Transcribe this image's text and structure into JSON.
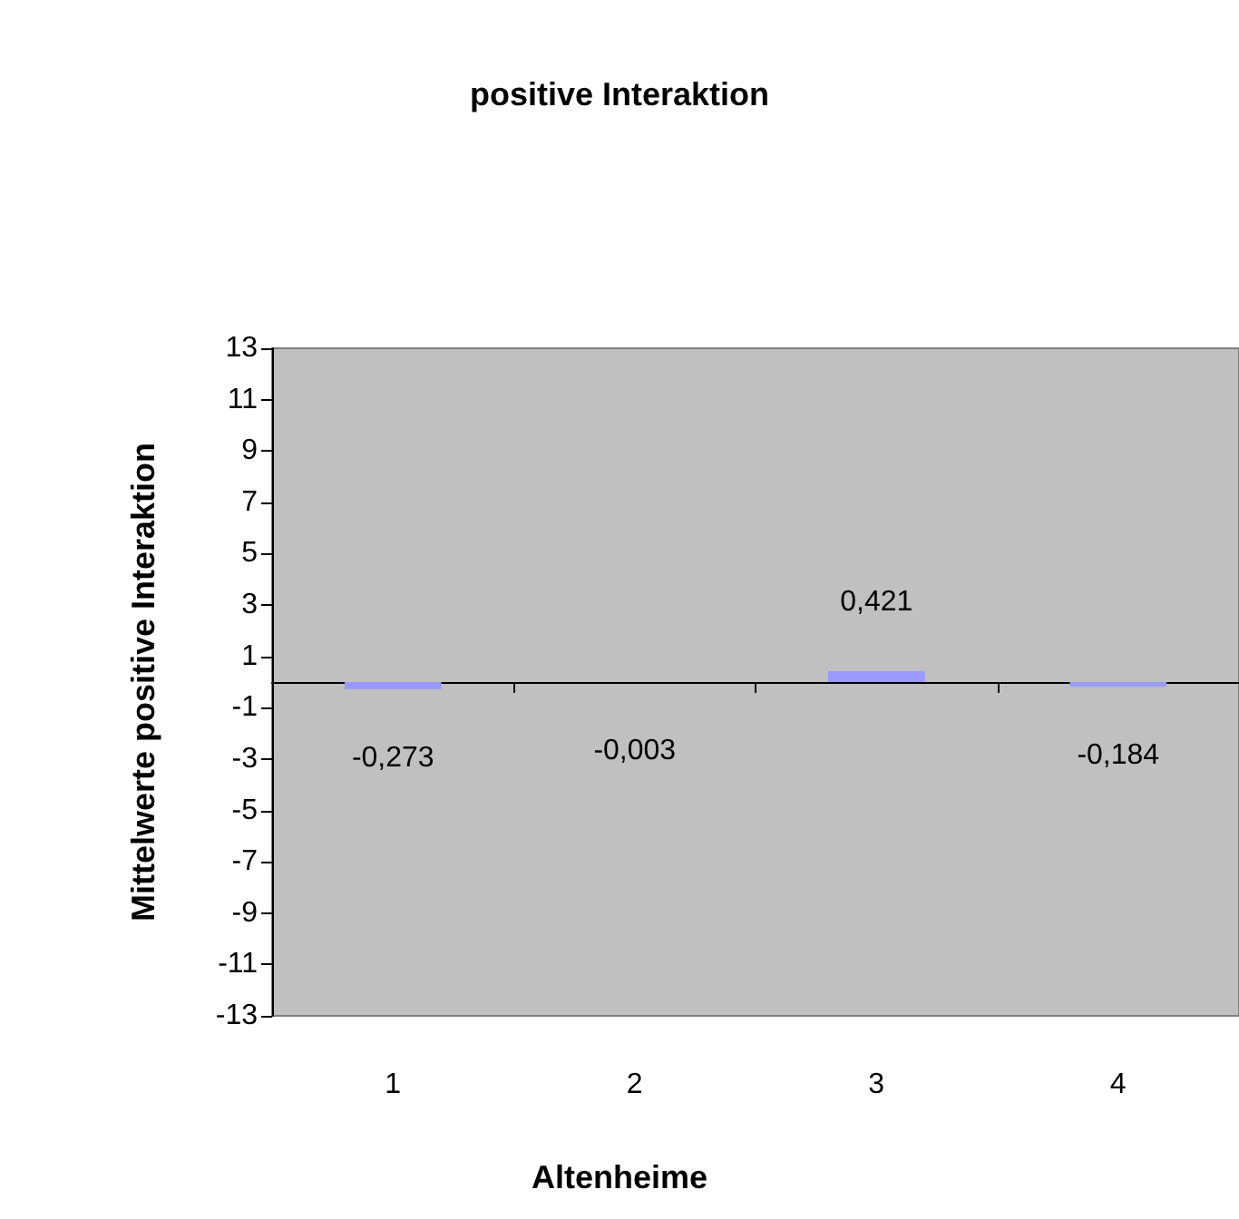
{
  "chart_data": {
    "type": "bar",
    "title": "positive Interaktion",
    "xlabel": "Altenheime",
    "ylabel": "Mittelwerte positive Interaktion",
    "categories": [
      "1",
      "2",
      "3",
      "4"
    ],
    "values": [
      -0.273,
      -0.003,
      0.421,
      -0.184
    ],
    "value_labels": [
      "-0,273",
      "-0,003",
      "0,421",
      "-0,184"
    ],
    "color": "#9999ff",
    "ylim": [
      -13,
      13
    ],
    "yticks": [
      -13,
      -11,
      -9,
      -7,
      -5,
      -3,
      -1,
      1,
      3,
      5,
      7,
      9,
      11,
      13
    ],
    "grid": false
  }
}
